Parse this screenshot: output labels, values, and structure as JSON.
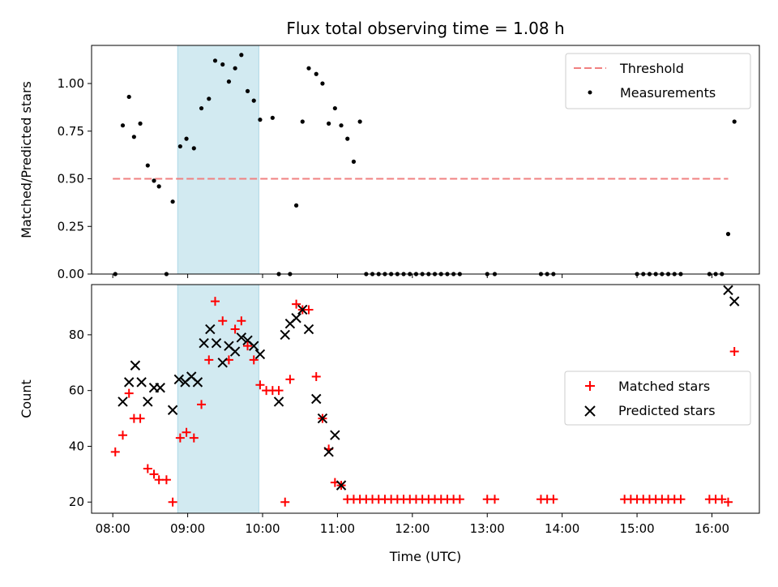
{
  "chart_data": {
    "title": "Flux total observing time = 1.08 h",
    "xlabel": "Time (UTC)",
    "x_ticks": [
      "08:00",
      "09:00",
      "10:00",
      "11:00",
      "12:00",
      "13:00",
      "14:00",
      "15:00",
      "16:00"
    ],
    "x_range": [
      "07:43",
      "16:38"
    ],
    "highlight_span": [
      "08:52",
      "09:57"
    ],
    "highlight_color": "#add8e6",
    "panels": [
      {
        "type": "scatter",
        "ylabel": "Matched/Predicted stars",
        "ylim": [
          0,
          1.2
        ],
        "y_ticks": [
          "0.00",
          "0.25",
          "0.50",
          "0.75",
          "1.00"
        ],
        "threshold": {
          "name": "Threshold",
          "value": 0.5,
          "x": [
            "08:00",
            "16:13"
          ],
          "color": "#f08080"
        },
        "series": [
          {
            "name": "Measurements",
            "color": "#000000",
            "marker": "dot",
            "x": [
              "08:02",
              "08:08",
              "08:13",
              "08:17",
              "08:22",
              "08:28",
              "08:33",
              "08:37",
              "08:43",
              "08:48",
              "08:54",
              "08:59",
              "09:05",
              "09:11",
              "09:17",
              "09:22",
              "09:28",
              "09:33",
              "09:38",
              "09:43",
              "09:48",
              "09:53",
              "09:58",
              "10:08",
              "10:13",
              "10:22",
              "10:27",
              "10:32",
              "10:37",
              "10:43",
              "10:48",
              "10:53",
              "10:58",
              "11:03",
              "11:08",
              "11:13",
              "11:18",
              "11:23",
              "11:28",
              "11:33",
              "11:38",
              "11:43",
              "11:48",
              "11:53",
              "11:58",
              "12:03",
              "12:08",
              "12:13",
              "12:18",
              "12:23",
              "12:28",
              "12:33",
              "12:38",
              "13:00",
              "13:06",
              "13:43",
              "13:48",
              "13:53",
              "15:00",
              "15:05",
              "15:10",
              "15:15",
              "15:20",
              "15:25",
              "15:30",
              "15:35",
              "15:58",
              "16:03",
              "16:08",
              "16:13",
              "16:18"
            ],
            "y": [
              0.0,
              0.78,
              0.93,
              0.72,
              0.79,
              0.57,
              0.49,
              0.46,
              0.0,
              0.38,
              0.67,
              0.71,
              0.66,
              0.87,
              0.92,
              1.12,
              1.1,
              1.01,
              1.08,
              1.15,
              0.96,
              0.91,
              0.81,
              0.82,
              0.0,
              0.0,
              0.36,
              0.8,
              1.08,
              1.05,
              1.0,
              0.79,
              0.87,
              0.78,
              0.71,
              0.59,
              0.8,
              0.0,
              0.0,
              0.0,
              0.0,
              0.0,
              0.0,
              0.0,
              0.0,
              0.0,
              0.0,
              0.0,
              0.0,
              0.0,
              0.0,
              0.0,
              0.0,
              0.0,
              0.0,
              0.0,
              0.0,
              0.0,
              0.0,
              0.0,
              0.0,
              0.0,
              0.0,
              0.0,
              0.0,
              0.0,
              0.0,
              0.0,
              0.0,
              0.21,
              0.8
            ]
          }
        ],
        "legend": {
          "position": "top-right",
          "entries": [
            "Threshold",
            "Measurements"
          ]
        }
      },
      {
        "type": "scatter",
        "ylabel": "Count",
        "ylim": [
          16,
          98
        ],
        "y_ticks": [
          "20",
          "40",
          "60",
          "80"
        ],
        "series": [
          {
            "name": "Matched stars",
            "color": "#ff0000",
            "marker": "plus",
            "x": [
              "08:02",
              "08:08",
              "08:13",
              "08:17",
              "08:22",
              "08:28",
              "08:33",
              "08:37",
              "08:43",
              "08:48",
              "08:54",
              "08:59",
              "09:05",
              "09:11",
              "09:17",
              "09:22",
              "09:28",
              "09:33",
              "09:38",
              "09:43",
              "09:48",
              "09:53",
              "09:58",
              "10:03",
              "10:08",
              "10:13",
              "10:18",
              "10:22",
              "10:27",
              "10:32",
              "10:37",
              "10:43",
              "10:48",
              "10:53",
              "10:58",
              "11:03",
              "11:08",
              "11:13",
              "11:18",
              "11:23",
              "11:28",
              "11:33",
              "11:38",
              "11:43",
              "11:48",
              "11:53",
              "11:58",
              "12:03",
              "12:08",
              "12:13",
              "12:18",
              "12:23",
              "12:28",
              "12:33",
              "12:38",
              "13:00",
              "13:06",
              "13:43",
              "13:48",
              "13:53",
              "14:50",
              "14:55",
              "15:00",
              "15:05",
              "15:10",
              "15:15",
              "15:20",
              "15:25",
              "15:30",
              "15:35",
              "15:58",
              "16:03",
              "16:08",
              "16:13",
              "16:18"
            ],
            "y": [
              38,
              44,
              59,
              50,
              50,
              32,
              30,
              28,
              28,
              20,
              43,
              45,
              43,
              55,
              71,
              92,
              85,
              71,
              82,
              85,
              76,
              71,
              62,
              60,
              60,
              60,
              20,
              64,
              91,
              89,
              89,
              65,
              50,
              39,
              27,
              26,
              21,
              21,
              21,
              21,
              21,
              21,
              21,
              21,
              21,
              21,
              21,
              21,
              21,
              21,
              21,
              21,
              21,
              21,
              21,
              21,
              21,
              21,
              21,
              21,
              21,
              21,
              21,
              21,
              21,
              21,
              21,
              21,
              21,
              21,
              21,
              21,
              21,
              20,
              74
            ]
          },
          {
            "name": "Predicted stars",
            "color": "#000000",
            "marker": "x",
            "x": [
              "08:08",
              "08:13",
              "08:18",
              "08:23",
              "08:28",
              "08:33",
              "08:38",
              "08:48",
              "08:53",
              "08:58",
              "09:03",
              "09:08",
              "09:13",
              "09:18",
              "09:23",
              "09:28",
              "09:33",
              "09:38",
              "09:43",
              "09:48",
              "09:53",
              "09:58",
              "10:13",
              "10:18",
              "10:22",
              "10:27",
              "10:32",
              "10:37",
              "10:43",
              "10:48",
              "10:53",
              "10:58",
              "11:03",
              "16:13",
              "16:18"
            ],
            "y": [
              56,
              63,
              69,
              63,
              56,
              61,
              61,
              53,
              64,
              63,
              65,
              63,
              77,
              82,
              77,
              70,
              76,
              74,
              79,
              78,
              76,
              73,
              56,
              80,
              84,
              86,
              89,
              82,
              57,
              50,
              38,
              44,
              26,
              96,
              92
            ]
          }
        ],
        "legend": {
          "position": "center-right",
          "entries": [
            "Matched stars",
            "Predicted stars"
          ]
        }
      }
    ]
  }
}
